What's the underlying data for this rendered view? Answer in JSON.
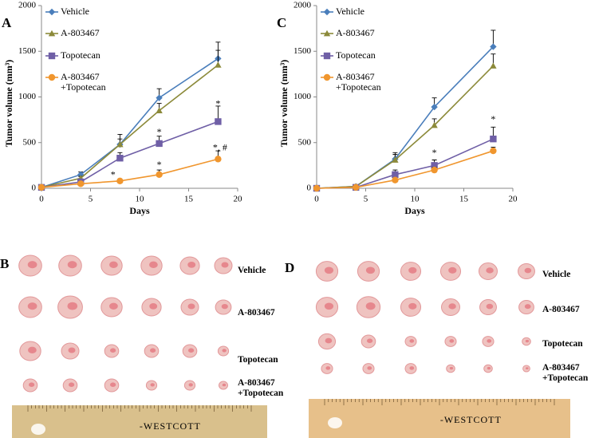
{
  "chart_data": [
    {
      "type": "line",
      "panel_label": "A",
      "xlabel": "Days",
      "ylabel": "Tumor volume (mm³)",
      "x": [
        0,
        4,
        8,
        12,
        18
      ],
      "xlim": [
        0,
        20
      ],
      "xticks": [
        0,
        5,
        10,
        15,
        20
      ],
      "ylim": [
        0,
        2000
      ],
      "yticks": [
        0,
        500,
        1000,
        1500,
        2000
      ],
      "series": [
        {
          "name": "Vehicle",
          "color": "#4a7ebb",
          "marker": "diamond",
          "values": [
            10,
            150,
            480,
            990,
            1420
          ],
          "errors": [
            null,
            30,
            60,
            100,
            180
          ]
        },
        {
          "name": "A-803467",
          "color": "#8c8a3a",
          "marker": "triangle",
          "values": [
            10,
            110,
            480,
            850,
            1350
          ],
          "errors": [
            null,
            20,
            110,
            80,
            160
          ]
        },
        {
          "name": "Topotecan",
          "color": "#6f5fa6",
          "marker": "square",
          "values": [
            10,
            70,
            330,
            490,
            730
          ],
          "errors": [
            null,
            20,
            60,
            80,
            170
          ]
        },
        {
          "name": "A-803467 +Topotecan",
          "color": "#f0962e",
          "marker": "circle",
          "values": [
            10,
            50,
            80,
            150,
            320
          ],
          "errors": [
            null,
            10,
            20,
            50,
            90
          ]
        }
      ],
      "annotations": [
        {
          "text": "*",
          "x": 7.3,
          "y": 140
        },
        {
          "text": "*",
          "x": 12,
          "y": 610
        },
        {
          "text": "*",
          "x": 12,
          "y": 250
        },
        {
          "text": "*",
          "x": 18,
          "y": 920
        },
        {
          "text": "*, #",
          "x": 18.2,
          "y": 440
        }
      ]
    },
    {
      "type": "line",
      "panel_label": "C",
      "xlabel": "Days",
      "ylabel": "Tumor volume (mm³)",
      "x": [
        0,
        4,
        8,
        12,
        18
      ],
      "xlim": [
        0,
        20
      ],
      "xticks": [
        0,
        5,
        10,
        15,
        20
      ],
      "ylim": [
        0,
        2000
      ],
      "yticks": [
        0,
        500,
        1000,
        1500,
        2000
      ],
      "series": [
        {
          "name": "Vehicle",
          "color": "#4a7ebb",
          "marker": "diamond",
          "values": [
            0,
            20,
            320,
            890,
            1550
          ],
          "errors": [
            null,
            10,
            70,
            100,
            180
          ]
        },
        {
          "name": "A-803467",
          "color": "#8c8a3a",
          "marker": "triangle",
          "values": [
            0,
            20,
            310,
            690,
            1340
          ],
          "errors": [
            null,
            10,
            60,
            70,
            130
          ]
        },
        {
          "name": "Topotecan",
          "color": "#6f5fa6",
          "marker": "square",
          "values": [
            0,
            10,
            150,
            250,
            540
          ],
          "errors": [
            null,
            10,
            50,
            60,
            130
          ]
        },
        {
          "name": "A-803467 +Topotecan",
          "color": "#f0962e",
          "marker": "circle",
          "values": [
            0,
            10,
            90,
            200,
            410
          ],
          "errors": [
            null,
            5,
            20,
            30,
            40
          ]
        }
      ],
      "annotations": [
        {
          "text": "*",
          "x": 12,
          "y": 380
        },
        {
          "text": "*",
          "x": 18,
          "y": 750
        }
      ]
    }
  ],
  "photo_panels": [
    {
      "label": "B",
      "rows": [
        "Vehicle",
        "A-803467",
        "Topotecan",
        "A-803467 +Topotecan"
      ],
      "ruler_brand": "-WESTCOTT"
    },
    {
      "label": "D",
      "rows": [
        "Vehicle",
        "A-803467",
        "Topotecan",
        "A-803467 +Topotecan"
      ],
      "ruler_brand": "-WESTCOTT"
    }
  ]
}
